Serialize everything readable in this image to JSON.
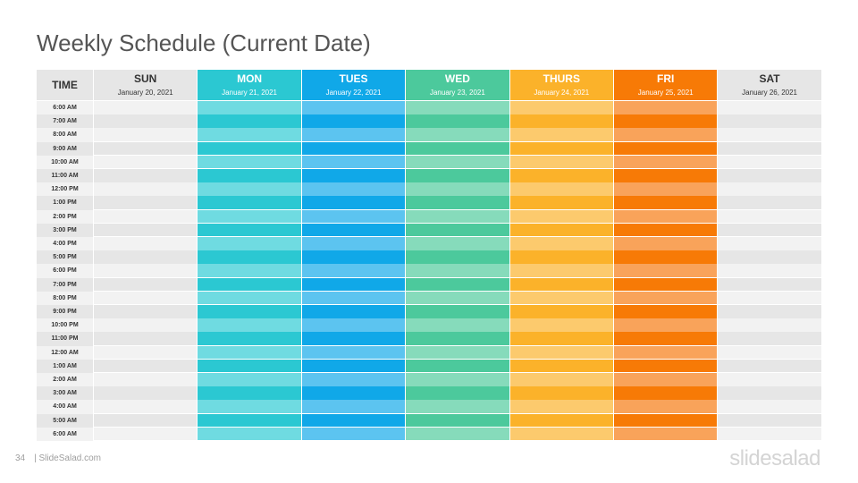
{
  "title": "Weekly Schedule (Current Date)",
  "time_header": "TIME",
  "days": [
    {
      "name": "SUN",
      "date": "January 20, 2021",
      "header_bg": "#e6e6e6",
      "text": "#333333",
      "dark": "#e6e6e6",
      "light": "#f2f2f2"
    },
    {
      "name": "MON",
      "date": "January 21, 2021",
      "header_bg": "#2bc8d2",
      "text": "#ffffff",
      "dark": "#2bc8d2",
      "light": "#6fdbe1"
    },
    {
      "name": "TUES",
      "date": "January 22, 2021",
      "header_bg": "#10a8e8",
      "text": "#ffffff",
      "dark": "#10a8e8",
      "light": "#5cc4f0"
    },
    {
      "name": "WED",
      "date": "January 23, 2021",
      "header_bg": "#4cc99c",
      "text": "#ffffff",
      "dark": "#4cc99c",
      "light": "#86dbbb"
    },
    {
      "name": "THURS",
      "date": "January 24, 2021",
      "header_bg": "#fbb22a",
      "text": "#ffffff",
      "dark": "#fbb22a",
      "light": "#fcca6d"
    },
    {
      "name": "FRI",
      "date": "January 25, 2021",
      "header_bg": "#f77a06",
      "text": "#ffffff",
      "dark": "#f77a06",
      "light": "#f9a35a"
    },
    {
      "name": "SAT",
      "date": "January 26, 2021",
      "header_bg": "#e6e6e6",
      "text": "#333333",
      "dark": "#e6e6e6",
      "light": "#f2f2f2"
    }
  ],
  "times": [
    "6:00 AM",
    "7:00 AM",
    "8:00 AM",
    "9:00 AM",
    "10:00 AM",
    "11:00 AM",
    "12:00 PM",
    "1:00 PM",
    "2:00 PM",
    "3:00 PM",
    "4:00 PM",
    "5:00 PM",
    "6:00 PM",
    "7:00 PM",
    "8:00 PM",
    "9:00 PM",
    "10:00 PM",
    "11:00 PM",
    "12:00 AM",
    "1:00 AM",
    "2:00 AM",
    "3:00 AM",
    "4:00 AM",
    "5:00 AM",
    "6:00 AM"
  ],
  "footer": {
    "page": "34",
    "site": "| SlideSalad.com"
  },
  "brand": "slidesalad"
}
